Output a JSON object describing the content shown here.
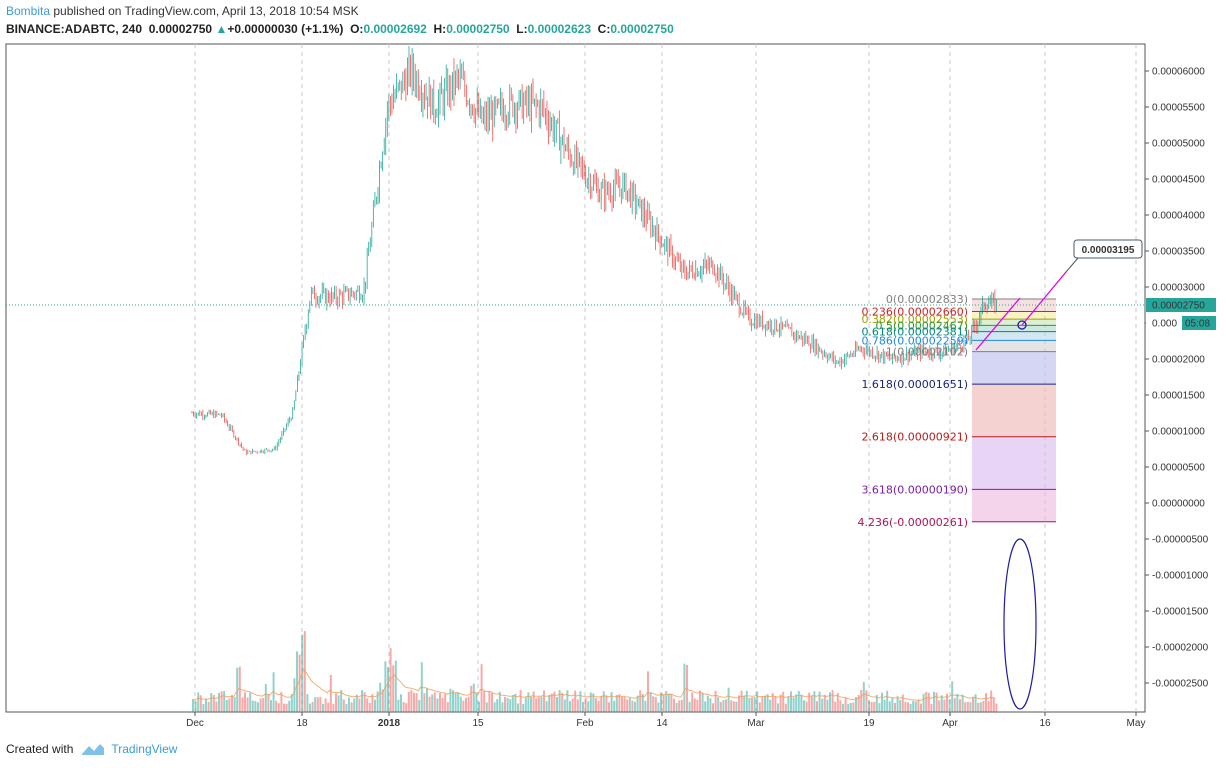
{
  "header": {
    "author": "Bombita",
    "published": "published on TradingView.com, April 13, 2018 10:54 MSK",
    "symbol": "BINANCE:ADABTC, 240",
    "last": "0.00002750",
    "change": "+0.00000030 (+1.1%)",
    "o_label": "O:",
    "o_value": "0.00002692",
    "h_label": "H:",
    "h_value": "0.00002750",
    "l_label": "L:",
    "l_value": "0.00002623",
    "c_label": "C:",
    "c_value": "0.00002750"
  },
  "footer": {
    "created": "Created with",
    "brand": "TradingView"
  },
  "colors": {
    "up": "#26a69a",
    "down": "#ef5350",
    "grid": "#c8c8c8",
    "lastline": "#26a69a",
    "trendline": "#e600e6",
    "ellipse": "#1b1ba8",
    "ma": "#f39c52"
  },
  "chart_data": {
    "type": "candlestick",
    "x_ticks": [
      "Dec",
      "18",
      "2018",
      "15",
      "Feb",
      "14",
      "Mar",
      "19",
      "Apr",
      "16",
      "May"
    ],
    "y_ticks": [
      "0.00006000",
      "0.00005500",
      "0.00005000",
      "0.00004500",
      "0.00004000",
      "0.00003500",
      "0.00003000",
      "0.00002500",
      "0.00002000",
      "0.00001500",
      "0.00001000",
      "0.00000500",
      "0.00000000",
      "-0.00000500",
      "-0.00001000",
      "-0.00001500",
      "-0.00002000",
      "-0.00002500"
    ],
    "last_price_label": "0.00002750",
    "countdown_label": "05:08",
    "partial_price_label": "0.000",
    "callout_label": "0.00003195",
    "price_path": [
      {
        "t": "Nov 28",
        "p": 1.25e-05
      },
      {
        "t": "Dec 3",
        "p": 1.22e-05
      },
      {
        "t": "Dec 7",
        "p": 7e-06
      },
      {
        "t": "Dec 12",
        "p": 7.5e-06
      },
      {
        "t": "Dec 15",
        "p": 1.25e-05
      },
      {
        "t": "Dec 18",
        "p": 2.9e-05
      },
      {
        "t": "Dec 22",
        "p": 2.85e-05
      },
      {
        "t": "Dec 27",
        "p": 2.95e-05
      },
      {
        "t": "Dec 31",
        "p": 5.5e-05
      },
      {
        "t": "Jan 4",
        "p": 6e-05
      },
      {
        "t": "Jan 8",
        "p": 5.5e-05
      },
      {
        "t": "Jan 12",
        "p": 5.9e-05
      },
      {
        "t": "Jan 16",
        "p": 5.3e-05
      },
      {
        "t": "Jan 21",
        "p": 5.55e-05
      },
      {
        "t": "Jan 26",
        "p": 5.5e-05
      },
      {
        "t": "Jan 31",
        "p": 4.8e-05
      },
      {
        "t": "Feb 5",
        "p": 4.3e-05
      },
      {
        "t": "Feb 9",
        "p": 4.4e-05
      },
      {
        "t": "Feb 14",
        "p": 3.8e-05
      },
      {
        "t": "Feb 19",
        "p": 3.2e-05
      },
      {
        "t": "Feb 24",
        "p": 3.3e-05
      },
      {
        "t": "Mar 2",
        "p": 2.55e-05
      },
      {
        "t": "Mar 7",
        "p": 2.45e-05
      },
      {
        "t": "Mar 12",
        "p": 2.25e-05
      },
      {
        "t": "Mar 17",
        "p": 1.95e-05
      },
      {
        "t": "Mar 21",
        "p": 2.15e-05
      },
      {
        "t": "Mar 26",
        "p": 2e-05
      },
      {
        "t": "Mar 31",
        "p": 2.1e-05
      },
      {
        "t": "Apr 4",
        "p": 2.1e-05
      },
      {
        "t": "Apr 8",
        "p": 2.25e-05
      },
      {
        "t": "Apr 11",
        "p": 2.8e-05
      },
      {
        "t": "Apr 13",
        "p": 2.75e-05
      }
    ],
    "fib_levels": [
      {
        "label": "0(0.00002833)",
        "value": 2.833e-05,
        "color": "#808080",
        "fill": "#f6e0e0"
      },
      {
        "label": "0.236(0.00002660)",
        "value": 2.66e-05,
        "color": "#c62828",
        "fill": "#fbf3c6"
      },
      {
        "label": "0.382(0.00002553)",
        "value": 2.553e-05,
        "color": "#a0a000",
        "fill": "#dcefd2"
      },
      {
        "label": "0.5(0.00002467)",
        "value": 2.467e-05,
        "color": "#2e9b2e",
        "fill": "#cde8e0"
      },
      {
        "label": "0.618(0.00002381)",
        "value": 2.381e-05,
        "color": "#00897b",
        "fill": "#d2e7f2"
      },
      {
        "label": "0.786(0.00002259)",
        "value": 2.259e-05,
        "color": "#1e88e5",
        "fill": "#e4e4e4"
      },
      {
        "label": "1(0.00002102)",
        "value": 2.102e-05,
        "color": "#808080",
        "fill": "#d4d6f4"
      },
      {
        "label": "1.618(0.00001651)",
        "value": 1.651e-05,
        "color": "#1a237e",
        "fill": "#f4d2d2"
      },
      {
        "label": "2.618(0.00000921)",
        "value": 9.21e-06,
        "color": "#b71c1c",
        "fill": "#e8d4f4"
      },
      {
        "label": "3.618(0.00000190)",
        "value": 1.9e-06,
        "color": "#7b1fa2",
        "fill": "#f4d4ea"
      },
      {
        "label": "4.236(-0.00000261)",
        "value": -2.61e-06,
        "color": "#ad1457",
        "fill": null
      }
    ]
  }
}
